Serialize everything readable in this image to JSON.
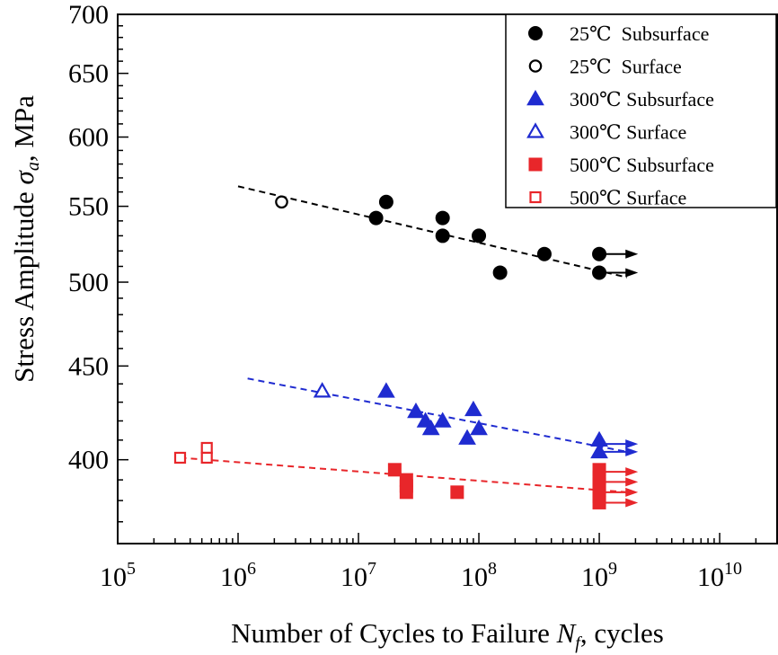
{
  "chart_data": {
    "type": "scatter",
    "xscale": "log",
    "yscale": "log",
    "xlim": [
      100000,
      30000000000
    ],
    "ylim": [
      360,
      700
    ],
    "xticks": [
      100000,
      1000000,
      10000000,
      100000000,
      1000000000,
      10000000000
    ],
    "xtick_labels": [
      {
        "base": "10",
        "exp": "5"
      },
      {
        "base": "10",
        "exp": "6"
      },
      {
        "base": "10",
        "exp": "7"
      },
      {
        "base": "10",
        "exp": "8"
      },
      {
        "base": "10",
        "exp": "9"
      },
      {
        "base": "10",
        "exp": "10"
      }
    ],
    "yticks": [
      400,
      450,
      500,
      550,
      600,
      650,
      700
    ],
    "ytick_labels": [
      "400",
      "450",
      "500",
      "550",
      "600",
      "650",
      "700"
    ],
    "xlabel": {
      "main": "Number of Cycles to Failure ",
      "symbol": "N",
      "sub": "f",
      "suffix": ", cycles"
    },
    "ylabel": {
      "main": "Stress Amplitude ",
      "symbol": "σ",
      "sub": "a",
      "suffix": ", MPa"
    },
    "grid": false,
    "legend_position": "top-right",
    "series": [
      {
        "name": "25℃  Subsurface",
        "marker": "circle",
        "filled": true,
        "color": "#000000",
        "points": [
          [
            14000000,
            542
          ],
          [
            17000000,
            553
          ],
          [
            50000000,
            542
          ],
          [
            50000000,
            530
          ],
          [
            100000000,
            530
          ],
          [
            150000000,
            506
          ],
          [
            350000000,
            518
          ],
          [
            1000000000,
            518
          ],
          [
            1000000000,
            506
          ]
        ]
      },
      {
        "name": "25℃  Surface",
        "marker": "circle",
        "filled": false,
        "color": "#000000",
        "points": [
          [
            2300000,
            553
          ]
        ]
      },
      {
        "name": "300℃ Subsurface",
        "marker": "triangle",
        "filled": true,
        "color": "#1f2bd0",
        "points": [
          [
            17000000,
            436
          ],
          [
            30000000,
            425
          ],
          [
            36000000,
            420
          ],
          [
            40000000,
            416
          ],
          [
            50000000,
            420
          ],
          [
            80000000,
            411
          ],
          [
            90000000,
            426
          ],
          [
            100000000,
            416
          ],
          [
            1000000000,
            410
          ],
          [
            1000000000,
            404
          ]
        ]
      },
      {
        "name": "300℃ Surface",
        "marker": "triangle",
        "filled": false,
        "color": "#1f2bd0",
        "points": [
          [
            5000000,
            436
          ]
        ]
      },
      {
        "name": "500℃ Subsurface",
        "marker": "square",
        "filled": true,
        "color": "#e8262a",
        "points": [
          [
            20000000,
            395
          ],
          [
            25000000,
            390
          ],
          [
            25000000,
            387
          ],
          [
            25000000,
            384
          ],
          [
            66000000,
            384
          ],
          [
            1000000000,
            395
          ],
          [
            1000000000,
            391
          ],
          [
            1000000000,
            388
          ],
          [
            1000000000,
            385
          ],
          [
            1000000000,
            382
          ],
          [
            1000000000,
            379
          ]
        ]
      },
      {
        "name": "500℃ Surface",
        "marker": "square",
        "filled": false,
        "color": "#e8262a",
        "points": [
          [
            330000,
            401
          ],
          [
            550000,
            406
          ],
          [
            550000,
            401
          ]
        ]
      }
    ],
    "fit_lines": [
      {
        "color": "#000000",
        "from": [
          1000000,
          564
        ],
        "to": [
          1700000000,
          503
        ]
      },
      {
        "color": "#1f2bd0",
        "from": [
          1200000,
          443
        ],
        "to": [
          1700000000,
          404
        ]
      },
      {
        "color": "#e8262a",
        "from": [
          330000,
          401
        ],
        "to": [
          1700000000,
          384
        ]
      }
    ],
    "runout_arrows": [
      {
        "color": "#000000",
        "at": [
          1000000000,
          518
        ],
        "to_x": 2100000000
      },
      {
        "color": "#000000",
        "at": [
          1000000000,
          506
        ],
        "to_x": 2100000000
      },
      {
        "color": "#1f2bd0",
        "at": [
          1000000000,
          408
        ],
        "to_x": 2100000000
      },
      {
        "color": "#1f2bd0",
        "at": [
          1000000000,
          404
        ],
        "to_x": 2100000000
      },
      {
        "color": "#e8262a",
        "at": [
          1000000000,
          394
        ],
        "to_x": 2100000000
      },
      {
        "color": "#e8262a",
        "at": [
          1000000000,
          389
        ],
        "to_x": 2100000000
      },
      {
        "color": "#e8262a",
        "at": [
          1000000000,
          384
        ],
        "to_x": 2100000000
      },
      {
        "color": "#e8262a",
        "at": [
          1000000000,
          379
        ],
        "to_x": 2100000000
      }
    ]
  }
}
